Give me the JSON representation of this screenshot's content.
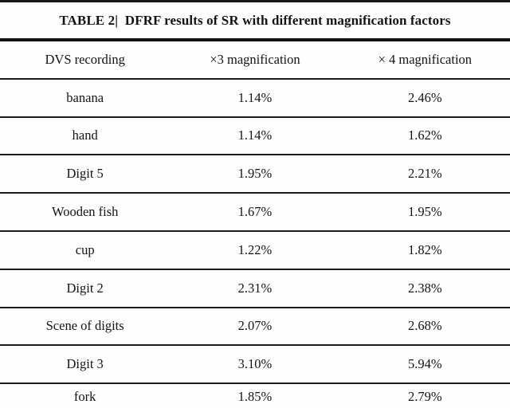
{
  "table": {
    "title": "TABLE 2|  DFRF results of SR with different magnification factors",
    "columns": [
      "DVS recording",
      "×3 magnification",
      "× 4 magnification"
    ],
    "rows": [
      [
        "banana",
        "1.14%",
        "2.46%"
      ],
      [
        "hand",
        "1.14%",
        "1.62%"
      ],
      [
        "Digit 5",
        "1.95%",
        "2.21%"
      ],
      [
        "Wooden fish",
        "1.67%",
        "1.95%"
      ],
      [
        "cup",
        "1.22%",
        "1.82%"
      ],
      [
        "Digit 2",
        "2.31%",
        "2.38%"
      ],
      [
        "Scene of digits",
        "2.07%",
        "2.68%"
      ],
      [
        "Digit 3",
        "3.10%",
        "5.94%"
      ],
      [
        "fork",
        "1.85%",
        "2.79%"
      ]
    ],
    "colors": {
      "rule": "#1b1b1b",
      "text": "#141414",
      "background": "#fefefe"
    }
  }
}
